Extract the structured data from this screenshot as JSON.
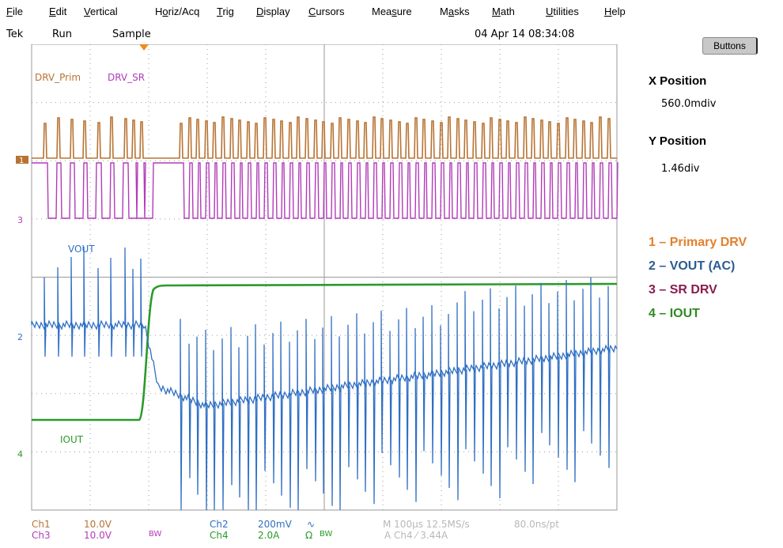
{
  "menu": [
    {
      "pre": "",
      "u": "F",
      "post": "ile"
    },
    {
      "pre": "",
      "u": "E",
      "post": "dit"
    },
    {
      "pre": "",
      "u": "V",
      "post": "ertical"
    },
    {
      "pre": "H",
      "u": "o",
      "post": "riz/Acq"
    },
    {
      "pre": "",
      "u": "T",
      "post": "rig"
    },
    {
      "pre": "",
      "u": "D",
      "post": "isplay"
    },
    {
      "pre": "",
      "u": "C",
      "post": "ursors"
    },
    {
      "pre": "Mea",
      "u": "s",
      "post": "ure"
    },
    {
      "pre": "M",
      "u": "a",
      "post": "sks"
    },
    {
      "pre": "",
      "u": "M",
      "post": "ath"
    },
    {
      "pre": "",
      "u": "U",
      "post": "tilities"
    },
    {
      "pre": "",
      "u": "H",
      "post": "elp"
    }
  ],
  "status": {
    "brand": "Tek",
    "run_state": "Run",
    "acq_mode": "Sample",
    "timestamp": "04 Apr 14 08:34:08"
  },
  "buttons_label": "Buttons",
  "position_panel": {
    "x_label": "X Position",
    "x_value": "560.0mdiv",
    "y_label": "Y Position",
    "y_value": "1.46div"
  },
  "legend": [
    {
      "text": "1 – Primary DRV",
      "color": "#e3802c"
    },
    {
      "text": "2 – VOUT (AC)",
      "color": "#2a5c93"
    },
    {
      "text": "3 – SR DRV",
      "color": "#8a1b4f"
    },
    {
      "text": "4 – IOUT",
      "color": "#2e8b22"
    }
  ],
  "traces": {
    "labels": {
      "drv_prim": "DRV_Prim",
      "drv_sr": "DRV_SR",
      "vout": "VOUT",
      "iout": "IOUT"
    },
    "markers": {
      "ch1": "1",
      "ch2": "2",
      "ch3": "3",
      "ch4": "4"
    },
    "colors": {
      "ch1": "#b87333",
      "ch2": "#2f6fc4",
      "ch3": "#b23cb8",
      "ch4": "#2b9a2b",
      "grid": "#9a9a9a",
      "trigger": "#f08a1c"
    }
  },
  "readouts": {
    "ch1": {
      "name": "Ch1",
      "scale": "10.0V"
    },
    "ch3": {
      "name": "Ch3",
      "scale": "10.0V",
      "bw": "BW"
    },
    "ch2": {
      "name": "Ch2",
      "scale": "200mV",
      "coupling": "∿"
    },
    "ch4": {
      "name": "Ch4",
      "scale": "2.0A",
      "coupling": "Ω",
      "bw": "BW"
    },
    "timebase": "M 100µs 12.5MS/s",
    "resolution": "80.0ns/pt",
    "trigger": "A  Ch4  ⁄  3.44A"
  }
}
